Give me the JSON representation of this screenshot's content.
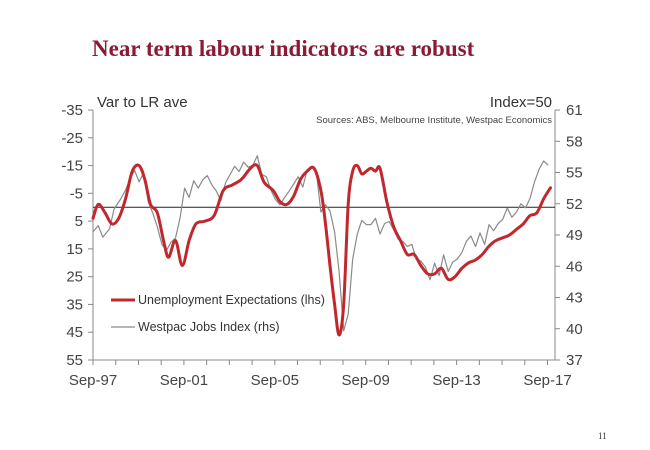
{
  "slide": {
    "title": "Near term labour indicators are robust",
    "page_number": "11"
  },
  "chart_data": {
    "type": "line",
    "left_axis_label": "Var to LR ave",
    "right_axis_label": "Index=50",
    "source": "Sources: ABS, Melbourne Institute,  Westpac Economics",
    "xlim": [
      1997.67,
      2018.0
    ],
    "x_ticks": [
      {
        "label": "Sep-97",
        "value": 1997.67
      },
      {
        "label": "Sep-01",
        "value": 2001.67
      },
      {
        "label": "Sep-05",
        "value": 2005.67
      },
      {
        "label": "Sep-09",
        "value": 2009.67
      },
      {
        "label": "Sep-13",
        "value": 2013.67
      },
      {
        "label": "Sep-17",
        "value": 2017.67
      }
    ],
    "y_left": {
      "min": -35,
      "max": 55,
      "inverted": true,
      "ticks": [
        -35,
        -25,
        -15,
        -5,
        5,
        15,
        25,
        35,
        45,
        55
      ]
    },
    "y_right": {
      "min": 37,
      "max": 61,
      "ticks": [
        61,
        58,
        55,
        52,
        49,
        46,
        43,
        40,
        37
      ]
    },
    "reference_line": {
      "axis": "left",
      "value": 0
    },
    "legend": {
      "position": "bottom-left"
    },
    "series": [
      {
        "name": "Unemployment Expectations (lhs)",
        "axis": "left",
        "color": "#c0282d",
        "x": [
          1997.67,
          1997.9,
          1998.2,
          1998.5,
          1998.8,
          1999.1,
          1999.4,
          1999.7,
          1999.95,
          2000.2,
          2000.5,
          2000.8,
          2001.0,
          2001.3,
          2001.6,
          2001.9,
          2002.2,
          2002.6,
          2003.0,
          2003.4,
          2003.8,
          2004.2,
          2004.6,
          2004.9,
          2005.2,
          2005.6,
          2005.9,
          2006.2,
          2006.5,
          2006.8,
          2007.1,
          2007.4,
          2007.7,
          2007.9,
          2008.1,
          2008.3,
          2008.5,
          2008.7,
          2008.9,
          2009.1,
          2009.3,
          2009.5,
          2009.7,
          2009.9,
          2010.1,
          2010.3,
          2010.6,
          2010.9,
          2011.2,
          2011.5,
          2011.8,
          2012.1,
          2012.4,
          2012.7,
          2013.0,
          2013.3,
          2013.6,
          2013.9,
          2014.2,
          2014.5,
          2014.8,
          2015.1,
          2015.4,
          2015.7,
          2016.0,
          2016.3,
          2016.6,
          2016.9,
          2017.2,
          2017.5,
          2017.8
        ],
        "y": [
          4,
          -1,
          2,
          6,
          4,
          -3,
          -13,
          -15,
          -10,
          -1,
          2,
          13,
          18,
          12,
          21,
          12,
          6,
          5,
          3,
          -6,
          -8,
          -10,
          -14,
          -15,
          -9,
          -6,
          -2,
          -1,
          -4,
          -10,
          -13,
          -14,
          -6,
          6,
          21,
          35,
          46,
          35,
          -1,
          -13,
          -15,
          -12,
          -13,
          -14,
          -13,
          -14,
          -2,
          7,
          12,
          17,
          17,
          21,
          24,
          24,
          22,
          26,
          25,
          22,
          20,
          19,
          17,
          14,
          12,
          11,
          10,
          8,
          6,
          3,
          2,
          -3,
          -7
        ]
      },
      {
        "name": "Westpac Jobs Index (rhs)",
        "axis": "right",
        "color": "#8a8a8a",
        "x": [
          1997.67,
          1997.9,
          1998.1,
          1998.4,
          1998.6,
          1998.9,
          1999.1,
          1999.3,
          1999.5,
          1999.7,
          1999.9,
          2000.1,
          2000.3,
          2000.5,
          2000.7,
          2000.9,
          2001.1,
          2001.3,
          2001.5,
          2001.7,
          2001.9,
          2002.1,
          2002.3,
          2002.5,
          2002.7,
          2002.9,
          2003.1,
          2003.3,
          2003.5,
          2003.7,
          2003.9,
          2004.1,
          2004.3,
          2004.5,
          2004.7,
          2004.9,
          2005.1,
          2005.3,
          2005.5,
          2005.7,
          2005.9,
          2006.1,
          2006.3,
          2006.5,
          2006.7,
          2006.9,
          2007.1,
          2007.3,
          2007.5,
          2007.7,
          2007.9,
          2008.1,
          2008.3,
          2008.5,
          2008.7,
          2008.9,
          2009.1,
          2009.3,
          2009.5,
          2009.7,
          2009.9,
          2010.1,
          2010.3,
          2010.5,
          2010.7,
          2010.9,
          2011.1,
          2011.3,
          2011.5,
          2011.7,
          2011.9,
          2012.1,
          2012.3,
          2012.5,
          2012.7,
          2012.9,
          2013.1,
          2013.3,
          2013.5,
          2013.7,
          2013.9,
          2014.1,
          2014.3,
          2014.5,
          2014.7,
          2014.9,
          2015.1,
          2015.3,
          2015.5,
          2015.7,
          2015.9,
          2016.1,
          2016.3,
          2016.5,
          2016.7,
          2016.9,
          2017.1,
          2017.3,
          2017.5,
          2017.7
        ],
        "y": [
          49.3,
          49.9,
          48.8,
          49.6,
          51.5,
          52.5,
          53.3,
          54.4,
          55.2,
          54.1,
          55.0,
          52.2,
          51.1,
          49.8,
          48.1,
          47.5,
          48.3,
          48.7,
          50.6,
          53.5,
          52.6,
          54.2,
          53.5,
          54.3,
          54.7,
          53.8,
          53.2,
          52.3,
          54.0,
          54.8,
          55.6,
          55.1,
          56.0,
          55.5,
          55.7,
          56.6,
          54.8,
          54.6,
          53.3,
          52.4,
          51.9,
          52.6,
          53.2,
          53.9,
          54.6,
          53.6,
          55.3,
          55.5,
          55.0,
          51.2,
          51.9,
          51.3,
          49.3,
          45.5,
          39.8,
          41.4,
          46.7,
          49.1,
          50.4,
          50.0,
          50.0,
          50.6,
          49.1,
          50.1,
          50.3,
          49.5,
          48.6,
          48.4,
          47.9,
          48.1,
          46.7,
          46.5,
          45.9,
          44.7,
          46.3,
          45.1,
          47.1,
          45.5,
          46.4,
          46.7,
          47.3,
          48.4,
          48.9,
          47.9,
          49.2,
          48.1,
          50.0,
          49.4,
          50.1,
          50.5,
          51.6,
          50.7,
          51.2,
          52.0,
          51.6,
          52.5,
          54.1,
          55.3,
          56.1,
          55.7
        ]
      }
    ]
  }
}
